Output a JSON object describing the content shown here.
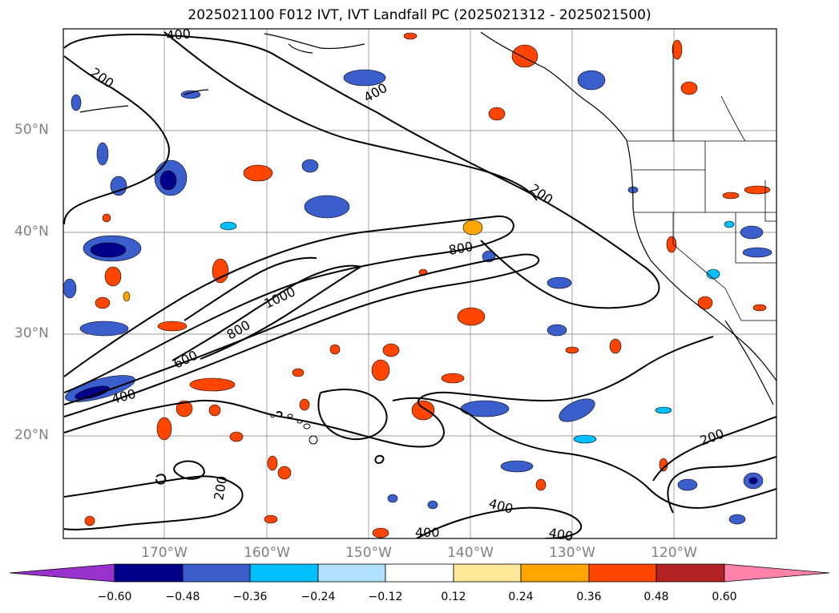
{
  "title": "2025021100 F012 IVT, IVT Landfall PC (2025021312 - 2025021500)",
  "map": {
    "lat_labels": [
      "50°N",
      "40°N",
      "30°N",
      "20°N"
    ],
    "lon_labels": [
      "170°W",
      "160°W",
      "150°W",
      "140°W",
      "130°W",
      "120°W"
    ],
    "contour_labels": [
      "400",
      "200",
      "400",
      "200",
      "800",
      "1000",
      "800",
      "600",
      "400",
      "200",
      "200",
      "400",
      "400",
      "400"
    ],
    "contour_levels": [
      200,
      400,
      600,
      800,
      1000
    ],
    "gridlines": true
  },
  "colorbar": {
    "tick_labels": [
      "−0.60",
      "−0.48",
      "−0.36",
      "−0.24",
      "−0.12",
      "0.12",
      "0.24",
      "0.36",
      "0.48",
      "0.60"
    ],
    "colors": [
      "#9932CC",
      "#00008B",
      "#3A5FCD",
      "#00BFFF",
      "#B0E2FF",
      "#FFFFFF",
      "#FFE89A",
      "#FFA500",
      "#FF4500",
      "#B22222",
      "#FF82AB"
    ]
  }
}
